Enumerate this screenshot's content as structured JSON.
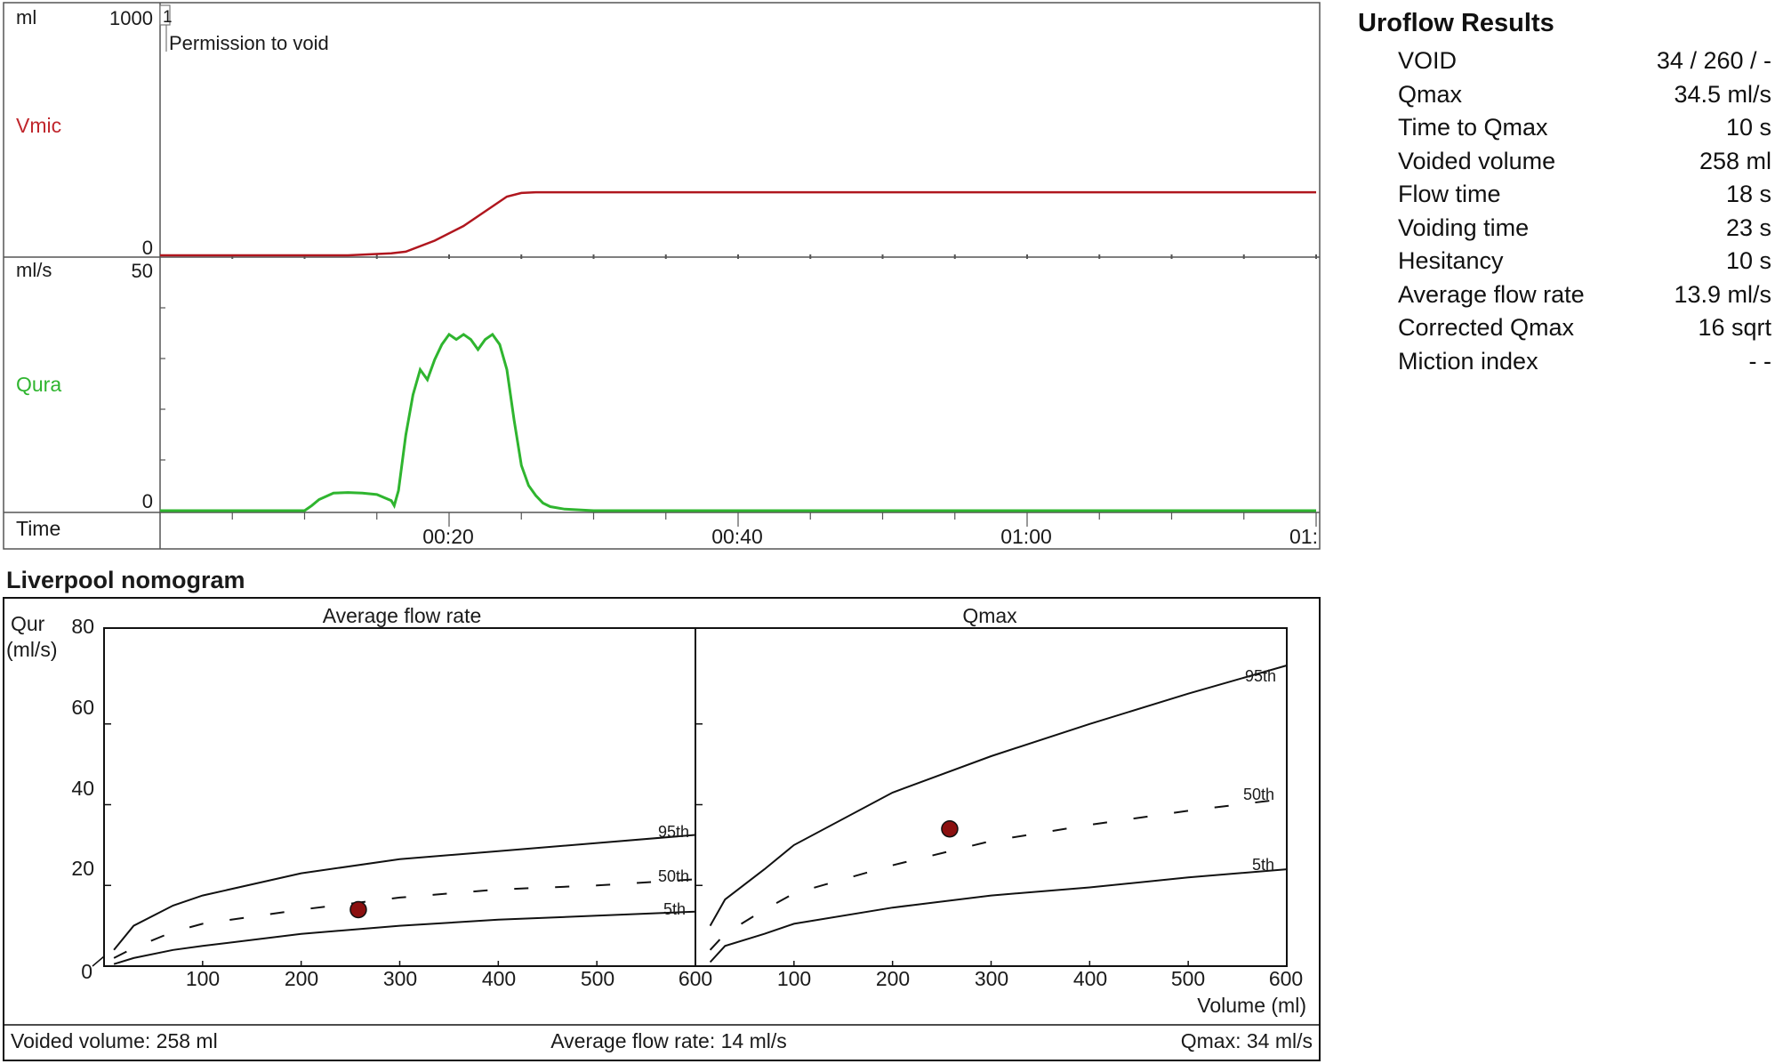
{
  "uroflow_chart": {
    "volume_panel": {
      "unit": "ml",
      "ymax_label": "1000",
      "zero_label": "0",
      "channel": "Vmic",
      "marker_number": "1",
      "marker_text": "Permission to void",
      "color": "#b0161e"
    },
    "flow_panel": {
      "unit": "ml/s",
      "ymax_label": "50",
      "zero_label": "0",
      "channel": "Qura",
      "color": "#2fb52f"
    },
    "time_label": "Time",
    "time_ticks": [
      "00:20",
      "00:40",
      "01:00",
      "01:"
    ]
  },
  "results": {
    "title": "Uroflow Results",
    "rows": [
      {
        "label": "VOID",
        "value": "34 / 260 / -"
      },
      {
        "label": "Qmax",
        "value": "34.5 ml/s"
      },
      {
        "label": "Time to Qmax",
        "value": "10 s"
      },
      {
        "label": "Voided volume",
        "value": "258 ml"
      },
      {
        "label": "Flow time",
        "value": "18 s"
      },
      {
        "label": "Voiding time",
        "value": "23 s"
      },
      {
        "label": "Hesitancy",
        "value": "10 s"
      },
      {
        "label": "Average flow rate",
        "value": "13.9 ml/s"
      },
      {
        "label": "Corrected Qmax",
        "value": "16 sqrt"
      },
      {
        "label": "Miction index",
        "value": "- -"
      }
    ]
  },
  "nomogram": {
    "heading": "Liverpool nomogram",
    "y_label_line1": "Qur",
    "y_label_line2": "(ml/s)",
    "x_label": "Volume (ml)",
    "y_ticks": [
      "80",
      "60",
      "40",
      "20",
      "0"
    ],
    "x_ticks": [
      "100",
      "200",
      "300",
      "400",
      "500",
      "600"
    ],
    "footer_left": "Voided volume: 258 ml",
    "footer_center": "Average flow rate: 14 ml/s",
    "footer_right": "Qmax: 34 ml/s",
    "point_color": "#8b1010"
  },
  "chart_data": [
    {
      "type": "line",
      "title": "",
      "ylabel": "ml",
      "series": [
        {
          "name": "Vmic",
          "x_s": [
            0,
            13,
            16,
            17,
            19,
            21,
            23,
            24,
            25,
            26,
            30,
            40,
            60,
            80
          ],
          "y": [
            0,
            0,
            8,
            15,
            60,
            120,
            200,
            240,
            255,
            258,
            258,
            258,
            258,
            258
          ]
        }
      ],
      "ylim": [
        0,
        1000
      ],
      "x_range_s": [
        0,
        80
      ],
      "x_tick_labels": [
        "00:20",
        "00:40",
        "01:00",
        "01:"
      ]
    },
    {
      "type": "line",
      "title": "",
      "ylabel": "ml/s",
      "series": [
        {
          "name": "Qura",
          "x_s": [
            0,
            10,
            10.5,
            11,
            12,
            13,
            14,
            15,
            16,
            16.2,
            16.5,
            17,
            17.5,
            18,
            18.5,
            19,
            19.5,
            20,
            20.5,
            21,
            21.5,
            22,
            22.5,
            23,
            23.5,
            24,
            24.5,
            25,
            25.5,
            26,
            26.5,
            27,
            28,
            30,
            40,
            60,
            80
          ],
          "y": [
            0,
            0,
            1,
            2.2,
            3.5,
            3.6,
            3.5,
            3.2,
            2,
            1,
            4,
            15,
            23,
            28,
            26,
            30,
            33,
            35,
            34,
            35,
            34,
            32,
            34,
            35,
            33,
            28,
            18,
            9,
            5,
            3,
            1.5,
            0.8,
            0.3,
            0,
            0,
            0,
            0
          ]
        }
      ],
      "ylim": [
        0,
        50
      ],
      "x_range_s": [
        0,
        80
      ],
      "x_tick_labels": [
        "00:20",
        "00:40",
        "01:00",
        "01:"
      ]
    },
    {
      "type": "line",
      "title": "Average flow rate",
      "xlabel": "Volume (ml)",
      "ylabel": "Qur (ml/s)",
      "xlim": [
        0,
        600
      ],
      "ylim": [
        0,
        80
      ],
      "series": [
        {
          "name": "95th",
          "x": [
            10,
            30,
            70,
            100,
            200,
            300,
            400,
            500,
            600
          ],
          "y": [
            4,
            10,
            15,
            17.5,
            23,
            26.5,
            28.5,
            30.5,
            32.5
          ]
        },
        {
          "name": "50th",
          "x": [
            10,
            30,
            70,
            100,
            200,
            300,
            400,
            500,
            600
          ],
          "y": [
            2,
            4.5,
            8.5,
            10.5,
            14,
            17,
            19,
            20,
            21.5
          ],
          "dashed": true
        },
        {
          "name": "5th",
          "x": [
            10,
            30,
            70,
            100,
            200,
            300,
            400,
            500,
            600
          ],
          "y": [
            0.5,
            2,
            4,
            5,
            8,
            10,
            11.5,
            12.5,
            13.5
          ]
        }
      ],
      "points": [
        {
          "x": 258,
          "y": 14
        }
      ]
    },
    {
      "type": "line",
      "title": "Qmax",
      "xlabel": "Volume (ml)",
      "ylabel": "Qur (ml/s)",
      "xlim": [
        0,
        600
      ],
      "ylim": [
        0,
        80
      ],
      "series": [
        {
          "name": "95th",
          "x": [
            15,
            30,
            70,
            100,
            200,
            300,
            400,
            500,
            600
          ],
          "y": [
            10,
            16.5,
            24,
            30,
            43,
            52,
            60,
            67.5,
            74.5
          ]
        },
        {
          "name": "50th",
          "x": [
            15,
            30,
            70,
            100,
            200,
            300,
            400,
            500,
            600
          ],
          "y": [
            4,
            8,
            14,
            18,
            25,
            31,
            35,
            38.5,
            41.5
          ],
          "dashed": true
        },
        {
          "name": "5th",
          "x": [
            15,
            30,
            70,
            100,
            200,
            300,
            400,
            500,
            600
          ],
          "y": [
            1,
            5,
            8,
            10.5,
            14.5,
            17.5,
            19.5,
            22,
            24
          ]
        }
      ],
      "points": [
        {
          "x": 258,
          "y": 34
        }
      ]
    }
  ]
}
